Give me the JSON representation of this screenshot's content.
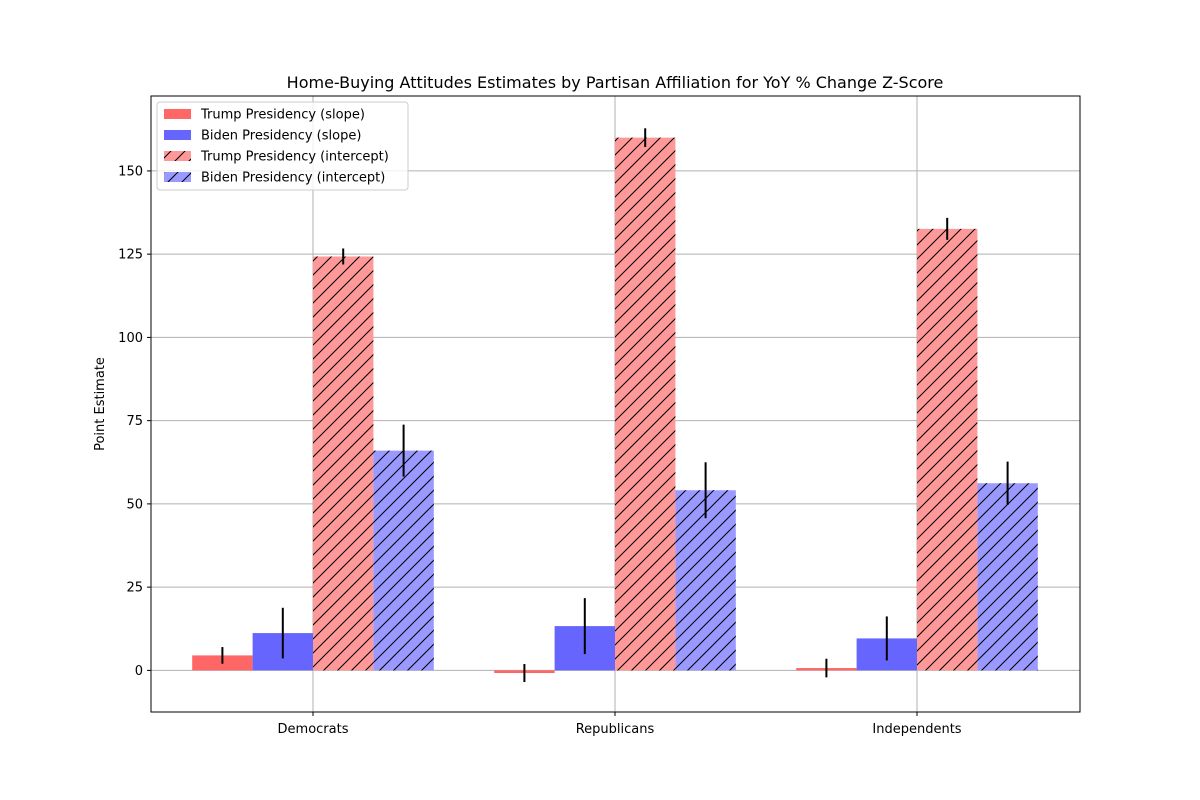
{
  "chart_data": {
    "type": "bar",
    "title": "Home-Buying Attitudes Estimates by Partisan Affiliation for YoY % Change Z-Score",
    "xlabel": "",
    "ylabel": "Point Estimate",
    "categories": [
      "Democrats",
      "Republicans",
      "Independents"
    ],
    "ylim": [
      -12.5,
      172.5
    ],
    "yticks": [
      0,
      25,
      50,
      75,
      100,
      125,
      150
    ],
    "grid": true,
    "legend_position": "top-left",
    "series": [
      {
        "name": "Trump Presidency (slope)",
        "color": "#ff6666",
        "hatch": false,
        "values": [
          4.5,
          -0.8,
          0.7
        ],
        "errors": [
          2.5,
          2.7,
          2.8
        ]
      },
      {
        "name": "Biden Presidency (slope)",
        "color": "#6666ff",
        "hatch": false,
        "values": [
          11.2,
          13.3,
          9.6
        ],
        "errors": [
          7.6,
          8.4,
          6.6
        ]
      },
      {
        "name": "Trump Presidency (intercept)",
        "color": "#ff9999",
        "hatch": true,
        "values": [
          124.3,
          160.0,
          132.6
        ],
        "errors": [
          2.4,
          2.8,
          3.3
        ]
      },
      {
        "name": "Biden Presidency (intercept)",
        "color": "#9999ff",
        "hatch": true,
        "values": [
          66.0,
          54.1,
          56.2
        ],
        "errors": [
          7.8,
          8.4,
          6.5
        ]
      }
    ]
  }
}
